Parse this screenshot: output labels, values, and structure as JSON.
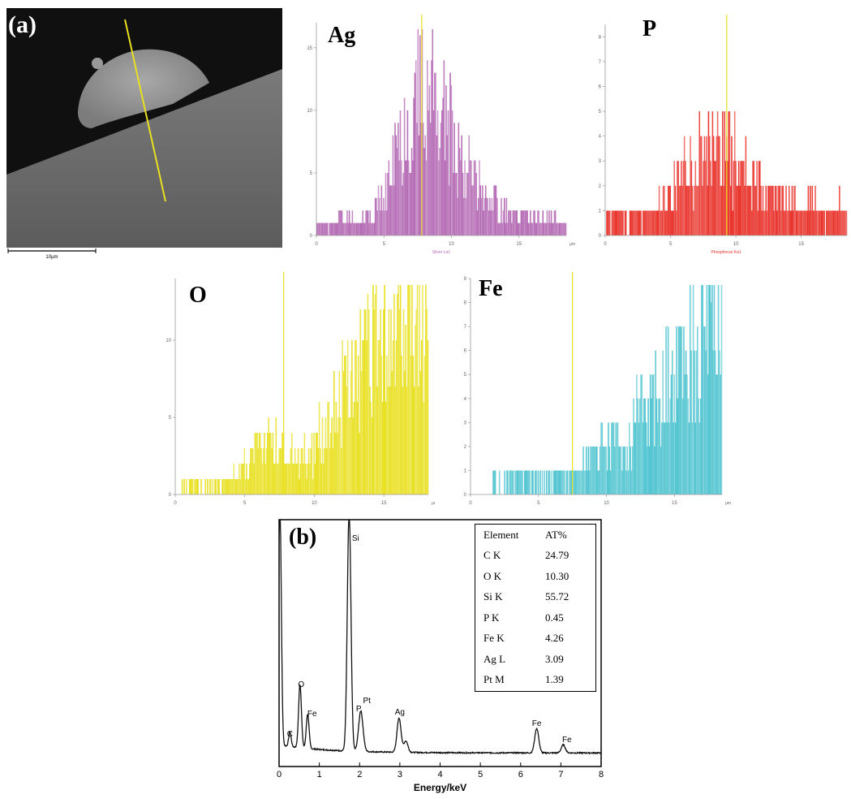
{
  "panel_a": {
    "label": "(a)",
    "scale_bar_label": "10μm"
  },
  "panel_b": {
    "label": "(b)"
  },
  "colors": {
    "Ag": "#b46ab4",
    "P": "#e83028",
    "O": "#e8e020",
    "Fe": "#50c4d0",
    "marker": "#e8e020"
  },
  "chart_data": [
    {
      "type": "bar",
      "title": "Ag",
      "xlabel": "Silver Lα1",
      "x_unit": "μm",
      "xlim": [
        0,
        18.5
      ],
      "ylim": [
        0,
        17
      ],
      "x_ticks": [
        "0",
        "5",
        "10",
        "15"
      ],
      "y_ticks": [
        "0",
        "5",
        "10",
        "15"
      ],
      "marker_x": 7.8,
      "profile": [
        [
          0,
          1
        ],
        [
          1,
          1
        ],
        [
          2,
          1.5
        ],
        [
          3,
          1
        ],
        [
          4,
          1.5
        ],
        [
          5,
          3
        ],
        [
          6,
          7
        ],
        [
          7,
          10
        ],
        [
          8,
          12
        ],
        [
          9,
          11
        ],
        [
          10,
          8
        ],
        [
          11,
          6
        ],
        [
          12,
          4
        ],
        [
          13,
          3
        ],
        [
          14,
          2
        ],
        [
          15,
          1.5
        ],
        [
          16,
          1.5
        ],
        [
          17,
          1.5
        ],
        [
          18.5,
          1
        ]
      ]
    },
    {
      "type": "bar",
      "title": "P",
      "xlabel": "Phosphorus Kα1",
      "x_unit": "μm",
      "xlim": [
        0,
        18.5
      ],
      "ylim": [
        0,
        8.5
      ],
      "x_ticks": [
        "0",
        "5",
        "10",
        "15"
      ],
      "y_ticks": [
        "0",
        "1",
        "2",
        "3",
        "4",
        "5",
        "6",
        "7",
        "8"
      ],
      "marker_x": 9.3,
      "profile": [
        [
          0,
          0.6
        ],
        [
          2,
          0.8
        ],
        [
          4,
          1
        ],
        [
          5,
          1.8
        ],
        [
          6,
          2.6
        ],
        [
          7,
          3.2
        ],
        [
          8,
          3.4
        ],
        [
          9,
          3.6
        ],
        [
          10,
          3
        ],
        [
          11,
          2.5
        ],
        [
          12,
          2
        ],
        [
          13,
          1.8
        ],
        [
          14,
          1.5
        ],
        [
          15,
          1.3
        ],
        [
          16,
          1.2
        ],
        [
          17,
          1
        ],
        [
          18.5,
          1
        ]
      ]
    },
    {
      "type": "bar",
      "title": "O",
      "xlabel": "",
      "x_unit": "μm",
      "xlim": [
        0,
        18.2
      ],
      "ylim": [
        0,
        14
      ],
      "x_ticks": [
        "0",
        "5",
        "10",
        "15"
      ],
      "y_ticks": [
        "0",
        "5",
        "10"
      ],
      "marker_x": 7.8,
      "profile": [
        [
          0,
          0.3
        ],
        [
          2,
          0.5
        ],
        [
          4,
          0.8
        ],
        [
          5,
          2
        ],
        [
          6,
          3
        ],
        [
          7,
          3.5
        ],
        [
          8,
          3
        ],
        [
          9,
          2.5
        ],
        [
          10,
          3
        ],
        [
          11,
          5
        ],
        [
          12,
          7
        ],
        [
          13,
          8
        ],
        [
          14,
          9
        ],
        [
          15,
          10
        ],
        [
          16,
          10.5
        ],
        [
          17,
          11
        ],
        [
          18.2,
          11.5
        ]
      ]
    },
    {
      "type": "bar",
      "title": "Fe",
      "xlabel": "",
      "x_unit": "μm",
      "xlim": [
        0,
        18.5
      ],
      "ylim": [
        0,
        9
      ],
      "x_ticks": [
        "0",
        "5",
        "10",
        "15"
      ],
      "y_ticks": [
        "0",
        "1",
        "2",
        "3",
        "4",
        "5",
        "6",
        "7",
        "8",
        "9"
      ],
      "marker_x": 7.5,
      "profile": [
        [
          1,
          0.3
        ],
        [
          3,
          0.5
        ],
        [
          5,
          0.6
        ],
        [
          7,
          0.8
        ],
        [
          8,
          1
        ],
        [
          9,
          1.5
        ],
        [
          10,
          2
        ],
        [
          11,
          2.5
        ],
        [
          12,
          3
        ],
        [
          13,
          3.5
        ],
        [
          14,
          4
        ],
        [
          15,
          5
        ],
        [
          16,
          6
        ],
        [
          17,
          6.5
        ],
        [
          18.5,
          7
        ]
      ]
    },
    {
      "type": "line",
      "xlabel": "Energy/keV",
      "xlim": [
        0,
        8
      ],
      "x_ticks": [
        "0",
        "1",
        "2",
        "3",
        "4",
        "5",
        "6",
        "7",
        "8"
      ],
      "peaks": [
        {
          "label": "C",
          "x": 0.27
        },
        {
          "label": "O",
          "x": 0.52
        },
        {
          "label": "Fe",
          "x": 0.71
        },
        {
          "label": "Si",
          "x": 1.74
        },
        {
          "label": "P",
          "x": 2.01
        },
        {
          "label": "Pt",
          "x": 2.05
        },
        {
          "label": "Ag",
          "x": 2.98
        },
        {
          "label": "Fe",
          "x": 6.4
        },
        {
          "label": "Fe",
          "x": 7.06
        }
      ],
      "table": {
        "headers": [
          "Element",
          "AT%"
        ],
        "rows": [
          [
            "C K",
            "24.79"
          ],
          [
            "O K",
            "10.30"
          ],
          [
            "Si K",
            "55.72"
          ],
          [
            "P K",
            "0.45"
          ],
          [
            "Fe K",
            "4.26"
          ],
          [
            "Ag L",
            "3.09"
          ],
          [
            "Pt M",
            "1.39"
          ]
        ]
      }
    }
  ]
}
